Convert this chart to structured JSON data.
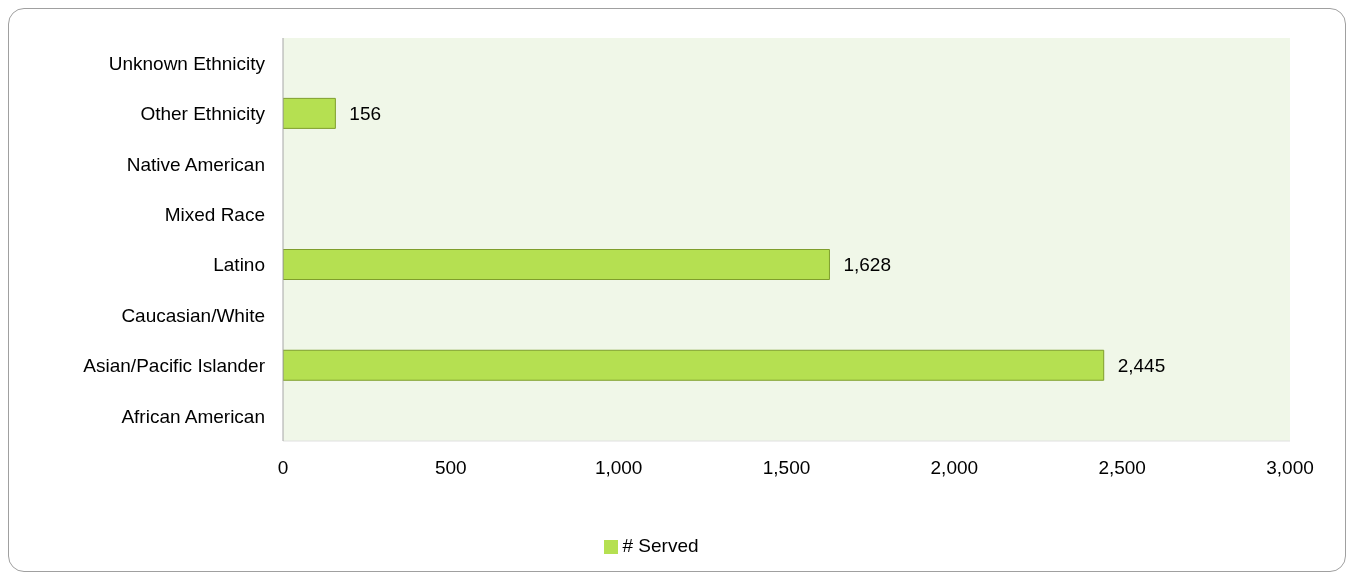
{
  "chart_data": {
    "type": "bar",
    "orientation": "horizontal",
    "categories": [
      "Unknown Ethnicity",
      "Other Ethnicity",
      "Native American",
      "Mixed Race",
      "Latino",
      "Caucasian/White",
      "Asian/Pacific Islander",
      "African American"
    ],
    "series": [
      {
        "name": "# Served",
        "color": "#b5e051",
        "values": [
          null,
          156,
          null,
          null,
          1628,
          null,
          2445,
          null
        ],
        "value_labels": [
          null,
          "156",
          null,
          null,
          "1,628",
          null,
          "2,445",
          null
        ]
      }
    ],
    "xlim": [
      0,
      3000
    ],
    "xticks": [
      0,
      500,
      {
        "value": 1000,
        "label": "1,000"
      },
      {
        "value": 1500,
        "label": "1,500"
      },
      {
        "value": 2000,
        "label": "2,000"
      },
      {
        "value": 2500,
        "label": "2,500"
      },
      {
        "value": 3000,
        "label": "3,000"
      }
    ],
    "grid": false,
    "legend": "bottom"
  }
}
